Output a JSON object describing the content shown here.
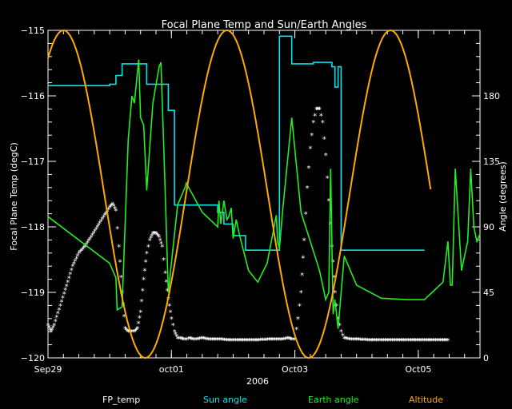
{
  "chart_data": {
    "type": "line",
    "title": "Focal Plane Temp and Sun/Earth Angles",
    "xlabel": "2006",
    "ylabel_left": "Focal Plane Temp (degC)",
    "ylabel_right": "Angle (degrees)",
    "x_tick_labels": [
      "Sep29",
      "oct01",
      "Oct03",
      "Oct05"
    ],
    "x_ticks_days": [
      0,
      2,
      4,
      6
    ],
    "xlim_days": [
      0,
      7
    ],
    "ylim_left": [
      -120,
      -115
    ],
    "yticks_left": [
      -120,
      -119,
      -118,
      -117,
      -116,
      -115
    ],
    "ylim_right": [
      0,
      225
    ],
    "yticks_right": [
      0,
      45,
      90,
      135,
      180
    ],
    "grid": false,
    "legend_position": "bottom",
    "colors": {
      "background": "#000000",
      "axes": "#ffffff",
      "FP_temp": "#ffffff",
      "Sun angle": "#00e5ee",
      "Earth angle": "#22ee22",
      "Altitude": "#ffaa00"
    },
    "series": [
      {
        "name": "FP_temp",
        "axis": "left",
        "style": "markers",
        "x": [
          0.0,
          0.05,
          0.1,
          0.2,
          0.3,
          0.4,
          0.5,
          0.6,
          0.7,
          0.8,
          0.9,
          1.0,
          1.05,
          1.1,
          1.15,
          1.2,
          1.25,
          1.3,
          1.35,
          1.4,
          1.45,
          1.5,
          1.55,
          1.6,
          1.65,
          1.7,
          1.75,
          1.8,
          1.85,
          1.9,
          1.95,
          2.0,
          2.05,
          2.1,
          2.15,
          2.2,
          2.25,
          2.3,
          2.35,
          2.4,
          2.5,
          2.6,
          2.7,
          2.8,
          2.9,
          3.0,
          3.2,
          3.4,
          3.6,
          3.7,
          3.8,
          3.9,
          3.95,
          4.0,
          4.05,
          4.1,
          4.15,
          4.2,
          4.25,
          4.3,
          4.35,
          4.4,
          4.45,
          4.5,
          4.55,
          4.6,
          4.65,
          4.7,
          4.75,
          4.8,
          4.9,
          5.0,
          5.2,
          5.4,
          5.6,
          5.8,
          6.0,
          6.2,
          6.4,
          6.5
        ],
        "y": [
          -119.5,
          -119.6,
          -119.5,
          -119.2,
          -118.9,
          -118.6,
          -118.4,
          -118.3,
          -118.15,
          -118.0,
          -117.85,
          -117.7,
          -117.65,
          -117.75,
          -118.3,
          -119.0,
          -119.55,
          -119.6,
          -119.6,
          -119.6,
          -119.55,
          -119.3,
          -118.8,
          -118.4,
          -118.2,
          -118.1,
          -118.1,
          -118.15,
          -118.3,
          -118.7,
          -119.1,
          -119.4,
          -119.6,
          -119.7,
          -119.7,
          -119.72,
          -119.72,
          -119.7,
          -119.72,
          -119.72,
          -119.7,
          -119.72,
          -119.72,
          -119.72,
          -119.73,
          -119.73,
          -119.73,
          -119.73,
          -119.72,
          -119.72,
          -119.72,
          -119.7,
          -119.72,
          -119.72,
          -119.4,
          -119.0,
          -118.2,
          -117.4,
          -116.8,
          -116.4,
          -116.2,
          -116.2,
          -116.4,
          -116.9,
          -117.6,
          -118.3,
          -119.0,
          -119.4,
          -119.6,
          -119.7,
          -119.72,
          -119.72,
          -119.73,
          -119.73,
          -119.73,
          -119.73,
          -119.73,
          -119.73,
          -119.73,
          -119.73
        ]
      },
      {
        "name": "Sun angle",
        "axis": "right",
        "style": "line",
        "x": [
          0.0,
          1.0,
          1.0,
          1.1,
          1.1,
          1.2,
          1.2,
          1.6,
          1.6,
          1.95,
          1.95,
          2.05,
          2.05,
          2.2,
          2.2,
          2.75,
          2.75,
          2.85,
          2.85,
          3.0,
          3.0,
          3.2,
          3.2,
          3.75,
          3.75,
          3.95,
          3.95,
          4.3,
          4.3,
          4.6,
          4.6,
          4.65,
          4.65,
          4.7,
          4.7,
          4.75,
          4.75,
          6.1
        ],
        "y": [
          187,
          187,
          188,
          188,
          194,
          194,
          202,
          202,
          188,
          188,
          170,
          170,
          105,
          105,
          105,
          105,
          100,
          100,
          92,
          92,
          84,
          84,
          74,
          74,
          221,
          221,
          202,
          202,
          203,
          203,
          200,
          200,
          186,
          186,
          200,
          200,
          74,
          74
        ]
      },
      {
        "name": "Earth angle",
        "axis": "right",
        "style": "line",
        "x": [
          0.0,
          1.0,
          1.05,
          1.1,
          1.12,
          1.2,
          1.3,
          1.33,
          1.36,
          1.4,
          1.47,
          1.5,
          1.55,
          1.6,
          1.7,
          1.8,
          1.83,
          1.88,
          1.95,
          2.1,
          2.2,
          2.22,
          2.24,
          2.5,
          2.75,
          2.77,
          2.8,
          2.85,
          2.9,
          2.93,
          2.97,
          3.0,
          3.05,
          3.1,
          3.25,
          3.4,
          3.55,
          3.7,
          3.72,
          3.75,
          3.8,
          3.95,
          4.1,
          4.25,
          4.4,
          4.5,
          4.55,
          4.58,
          4.62,
          4.65,
          4.7,
          4.8,
          5.0,
          5.4,
          5.8,
          6.1,
          6.4,
          6.48,
          6.52,
          6.55,
          6.6,
          6.7,
          6.8,
          6.85,
          6.9,
          6.95,
          7.0
        ],
        "y": [
          97,
          65,
          60,
          55,
          33,
          35,
          150,
          165,
          180,
          175,
          205,
          165,
          160,
          115,
          175,
          200,
          203,
          140,
          45,
          105,
          115,
          117,
          120,
          100,
          90,
          108,
          92,
          108,
          95,
          97,
          103,
          82,
          95,
          85,
          60,
          52,
          65,
          98,
          80,
          75,
          100,
          165,
          100,
          80,
          60,
          40,
          45,
          130,
          30,
          40,
          20,
          70,
          50,
          41,
          40,
          40,
          52,
          80,
          50,
          50,
          130,
          60,
          80,
          130,
          90,
          80,
          85
        ]
      },
      {
        "name": "Altitude",
        "axis": "right",
        "style": "line",
        "shape": "sine",
        "x_start": 0.0,
        "x_end": 6.2,
        "period_days": 2.65,
        "peak_x": 0.25,
        "min": 0,
        "max": 225
      }
    ]
  },
  "legend": {
    "items": [
      {
        "name": "FP_temp",
        "label": "FP_temp",
        "color": "#ffffff"
      },
      {
        "name": "Sun angle",
        "label": "Sun angle",
        "color": "#00e5ee"
      },
      {
        "name": "Earth angle",
        "label": "Earth angle",
        "color": "#22ee22"
      },
      {
        "name": "Altitude",
        "label": "Altitude",
        "color": "#ffaa00"
      }
    ]
  }
}
